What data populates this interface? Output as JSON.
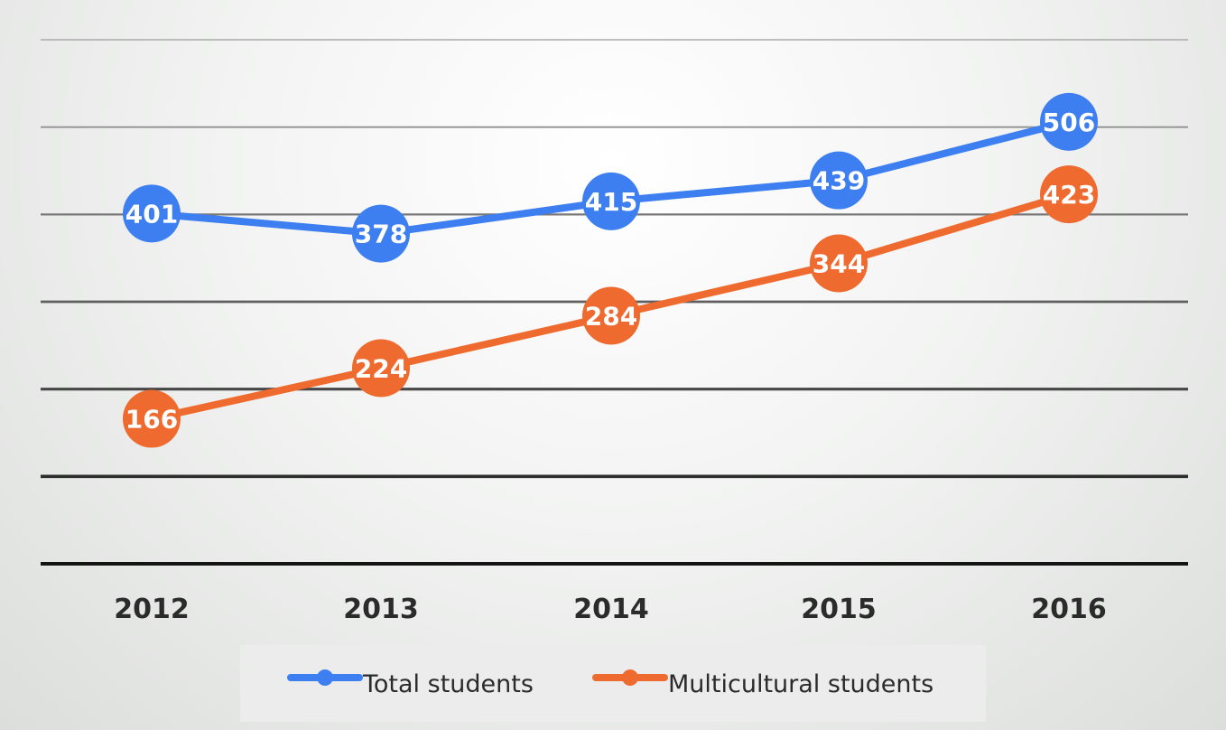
{
  "chart_data": {
    "type": "line",
    "categories": [
      "2012",
      "2013",
      "2014",
      "2015",
      "2016"
    ],
    "series": [
      {
        "name": "Total students",
        "values": [
          401,
          378,
          415,
          439,
          506
        ],
        "color": "#3d7ff0"
      },
      {
        "name": "Multicultural students",
        "values": [
          166,
          224,
          284,
          344,
          423
        ],
        "color": "#ef6a2e"
      }
    ],
    "ylim": [
      0,
      600
    ],
    "grid": true,
    "data_labels": true,
    "legend_position": "bottom"
  }
}
